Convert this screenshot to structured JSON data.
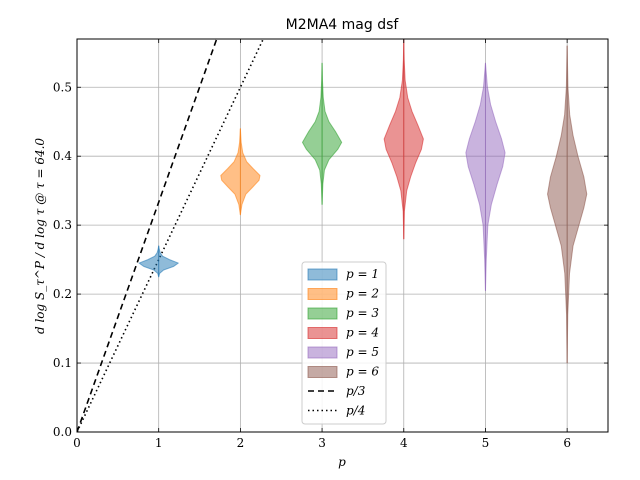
{
  "chart_data": {
    "type": "violin",
    "title": "M2MA4 mag dsf",
    "xlabel": "p",
    "ylabel": "d log S_τ^P / d log τ @ τ = 64.0",
    "xlim": [
      0,
      6.5
    ],
    "ylim": [
      0,
      0.57
    ],
    "xticks": [
      0,
      1,
      2,
      3,
      4,
      5,
      6
    ],
    "yticks": [
      0.0,
      0.1,
      0.2,
      0.3,
      0.4,
      0.5
    ],
    "xtick_labels": [
      "0",
      "1",
      "2",
      "3",
      "4",
      "5",
      "6"
    ],
    "ytick_labels": [
      "0.0",
      "0.1",
      "0.2",
      "0.3",
      "0.4",
      "0.5"
    ],
    "grid": true,
    "legend_position": "lower-center",
    "series": [
      {
        "name": "p = 1",
        "x": 1,
        "color": "#1f77b4",
        "min": 0.225,
        "max": 0.27,
        "profile": [
          [
            0.225,
            0.0
          ],
          [
            0.23,
            0.05
          ],
          [
            0.235,
            0.25
          ],
          [
            0.24,
            0.75
          ],
          [
            0.245,
            1.0
          ],
          [
            0.25,
            0.55
          ],
          [
            0.255,
            0.2
          ],
          [
            0.26,
            0.08
          ],
          [
            0.265,
            0.03
          ],
          [
            0.27,
            0.0
          ]
        ]
      },
      {
        "name": "p = 2",
        "x": 2,
        "color": "#ff7f0e",
        "min": 0.315,
        "max": 0.44,
        "profile": [
          [
            0.315,
            0.0
          ],
          [
            0.33,
            0.08
          ],
          [
            0.345,
            0.28
          ],
          [
            0.355,
            0.62
          ],
          [
            0.365,
            0.95
          ],
          [
            0.372,
            1.0
          ],
          [
            0.382,
            0.65
          ],
          [
            0.392,
            0.32
          ],
          [
            0.405,
            0.12
          ],
          [
            0.42,
            0.04
          ],
          [
            0.44,
            0.0
          ]
        ]
      },
      {
        "name": "p = 3",
        "x": 3,
        "color": "#2ca02c",
        "min": 0.33,
        "max": 0.535,
        "profile": [
          [
            0.33,
            0.0
          ],
          [
            0.36,
            0.04
          ],
          [
            0.38,
            0.12
          ],
          [
            0.395,
            0.35
          ],
          [
            0.41,
            0.8
          ],
          [
            0.42,
            1.0
          ],
          [
            0.435,
            0.7
          ],
          [
            0.45,
            0.35
          ],
          [
            0.465,
            0.15
          ],
          [
            0.485,
            0.06
          ],
          [
            0.51,
            0.02
          ],
          [
            0.535,
            0.0
          ]
        ]
      },
      {
        "name": "p = 4",
        "x": 4,
        "color": "#d62728",
        "min": 0.28,
        "max": 0.57,
        "profile": [
          [
            0.28,
            0.0
          ],
          [
            0.32,
            0.03
          ],
          [
            0.35,
            0.15
          ],
          [
            0.37,
            0.35
          ],
          [
            0.39,
            0.6
          ],
          [
            0.41,
            0.9
          ],
          [
            0.425,
            1.0
          ],
          [
            0.445,
            0.72
          ],
          [
            0.465,
            0.42
          ],
          [
            0.485,
            0.2
          ],
          [
            0.51,
            0.07
          ],
          [
            0.54,
            0.02
          ],
          [
            0.57,
            0.0
          ]
        ]
      },
      {
        "name": "p = 5",
        "x": 5,
        "color": "#9467bd",
        "min": 0.205,
        "max": 0.535,
        "profile": [
          [
            0.205,
            0.0
          ],
          [
            0.25,
            0.04
          ],
          [
            0.3,
            0.12
          ],
          [
            0.33,
            0.3
          ],
          [
            0.36,
            0.6
          ],
          [
            0.385,
            0.88
          ],
          [
            0.405,
            1.0
          ],
          [
            0.425,
            0.82
          ],
          [
            0.45,
            0.52
          ],
          [
            0.475,
            0.26
          ],
          [
            0.5,
            0.1
          ],
          [
            0.535,
            0.0
          ]
        ]
      },
      {
        "name": "p = 6",
        "x": 6,
        "color": "#8c564b",
        "min": 0.1,
        "max": 0.56,
        "profile": [
          [
            0.1,
            0.0
          ],
          [
            0.17,
            0.03
          ],
          [
            0.23,
            0.12
          ],
          [
            0.27,
            0.3
          ],
          [
            0.3,
            0.6
          ],
          [
            0.325,
            0.85
          ],
          [
            0.345,
            1.0
          ],
          [
            0.37,
            0.85
          ],
          [
            0.4,
            0.55
          ],
          [
            0.43,
            0.3
          ],
          [
            0.46,
            0.13
          ],
          [
            0.5,
            0.04
          ],
          [
            0.56,
            0.0
          ]
        ]
      }
    ],
    "reference_lines": [
      {
        "name": "p/3",
        "style": "dashed",
        "slope": 0.3333
      },
      {
        "name": "p/4",
        "style": "dotted",
        "slope": 0.25
      }
    ]
  }
}
